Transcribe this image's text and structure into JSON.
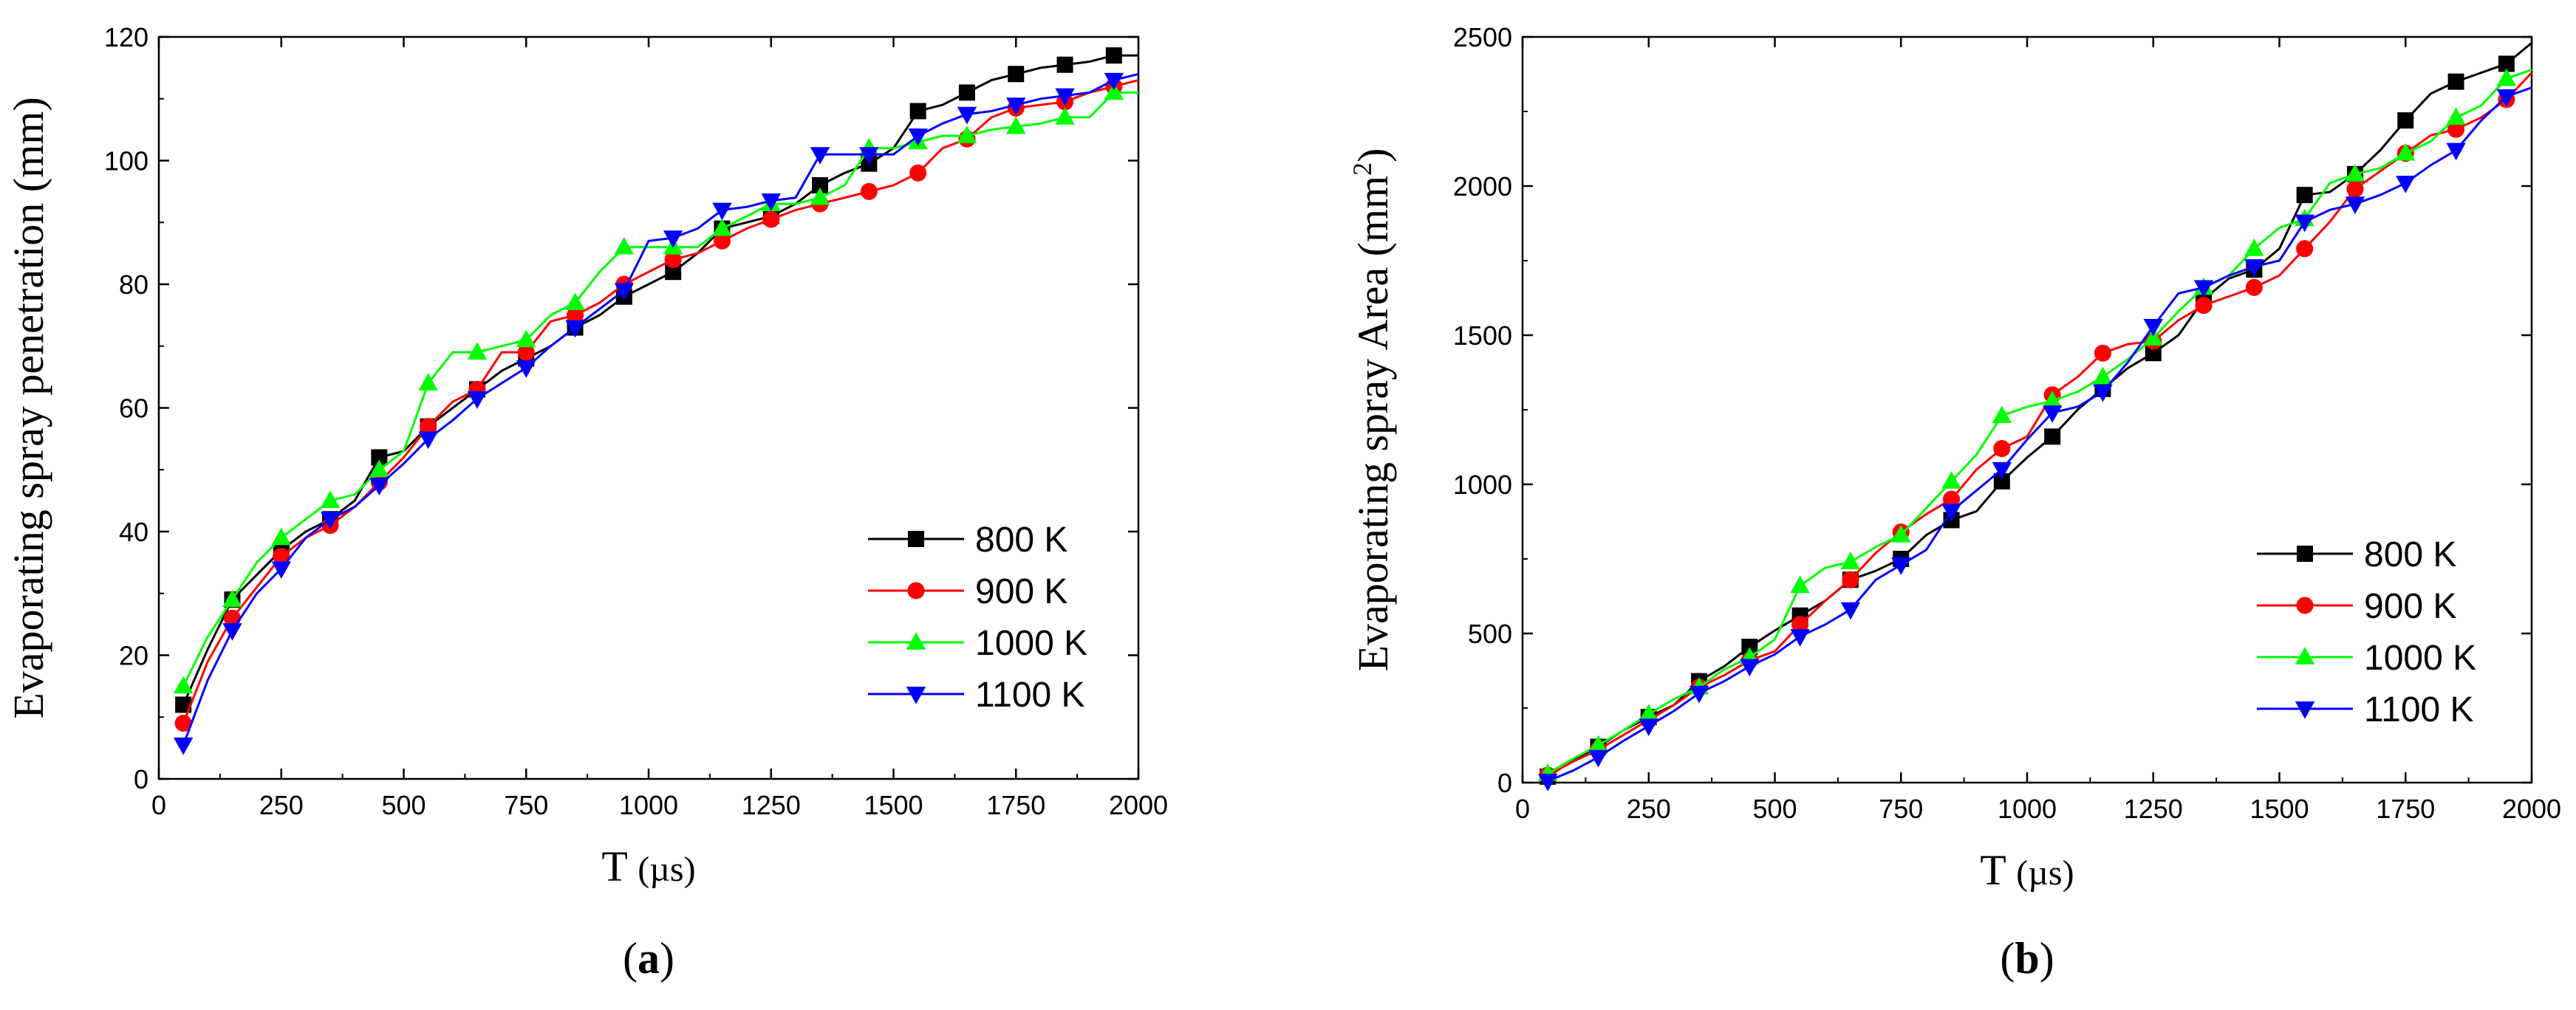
{
  "chart_data": [
    {
      "type": "line",
      "panel_label": "(a)",
      "panel_letter": "a",
      "xlabel": "T",
      "xunit": "(µs)",
      "ylabel": "Evaporating spray penetration (mm)",
      "xlim": [
        0,
        2000
      ],
      "ylim": [
        0,
        120
      ],
      "xticks": [
        0,
        250,
        500,
        750,
        1000,
        1250,
        1500,
        1750,
        2000
      ],
      "yticks": [
        0,
        20,
        40,
        60,
        80,
        100,
        120
      ],
      "legend_position": "bottom-right",
      "series": [
        {
          "name": "800 K",
          "color": "#000000",
          "marker": "square",
          "x": [
            50,
            100,
            150,
            200,
            250,
            300,
            350,
            400,
            450,
            500,
            550,
            600,
            650,
            700,
            750,
            800,
            850,
            900,
            950,
            1000,
            1050,
            1100,
            1150,
            1200,
            1250,
            1300,
            1350,
            1400,
            1450,
            1500,
            1550,
            1600,
            1650,
            1700,
            1750,
            1800,
            1850,
            1900,
            1950,
            2000
          ],
          "y": [
            12,
            21,
            29,
            33,
            37,
            40,
            42,
            45,
            52,
            53,
            57,
            60,
            63,
            66,
            68,
            70,
            73,
            75,
            78,
            80,
            82,
            85,
            89,
            90,
            91,
            93,
            96,
            98,
            99.5,
            102,
            108,
            109,
            111,
            113,
            114,
            115,
            115.5,
            116,
            117,
            117
          ]
        },
        {
          "name": "900 K",
          "color": "#ff0000",
          "marker": "circle",
          "x": [
            50,
            100,
            150,
            200,
            250,
            300,
            350,
            400,
            450,
            500,
            550,
            600,
            650,
            700,
            750,
            800,
            850,
            900,
            950,
            1000,
            1050,
            1100,
            1150,
            1200,
            1250,
            1300,
            1350,
            1400,
            1450,
            1500,
            1550,
            1600,
            1650,
            1700,
            1750,
            1800,
            1850,
            1900,
            1950,
            2000
          ],
          "y": [
            9,
            19,
            26,
            31,
            36,
            39,
            41,
            44,
            48,
            52,
            57,
            61,
            63,
            69,
            69,
            74,
            75,
            77,
            80,
            82,
            84,
            85,
            87,
            89,
            90.5,
            92,
            93,
            94,
            95,
            96,
            98,
            102,
            103.5,
            107,
            108.5,
            109,
            109.5,
            111,
            112,
            113
          ]
        },
        {
          "name": "1000 K",
          "color": "#00ff00",
          "marker": "triangle-up",
          "x": [
            50,
            100,
            150,
            200,
            250,
            300,
            350,
            400,
            450,
            500,
            550,
            600,
            650,
            700,
            750,
            800,
            850,
            900,
            950,
            1000,
            1050,
            1100,
            1150,
            1200,
            1250,
            1300,
            1350,
            1400,
            1450,
            1500,
            1550,
            1600,
            1650,
            1700,
            1750,
            1800,
            1850,
            1900,
            1950,
            2000
          ],
          "y": [
            15,
            23,
            29,
            35,
            39,
            42,
            45,
            46,
            50,
            53,
            64,
            69,
            69,
            70,
            71,
            75,
            77,
            82,
            86,
            86,
            86,
            86,
            89,
            91,
            93,
            93,
            94,
            96,
            102,
            102,
            103,
            104,
            104,
            105,
            105.5,
            106,
            107,
            107,
            111,
            111
          ]
        },
        {
          "name": "1100 K",
          "color": "#0000ff",
          "marker": "triangle-down",
          "x": [
            50,
            100,
            150,
            200,
            250,
            300,
            350,
            400,
            450,
            500,
            550,
            600,
            650,
            700,
            750,
            800,
            850,
            900,
            950,
            1000,
            1050,
            1100,
            1150,
            1200,
            1250,
            1300,
            1350,
            1400,
            1450,
            1500,
            1550,
            1600,
            1650,
            1700,
            1750,
            1800,
            1850,
            1900,
            1950,
            2000
          ],
          "y": [
            5.5,
            16,
            24,
            30,
            34,
            39,
            42,
            44,
            47.5,
            51,
            55,
            58,
            61.5,
            64,
            66.5,
            70,
            73,
            76,
            79,
            87,
            87.5,
            89,
            92,
            92.5,
            93.5,
            94,
            101,
            101,
            101,
            101,
            104,
            106,
            107.5,
            108,
            109,
            110,
            110.5,
            111,
            113,
            114
          ]
        }
      ]
    },
    {
      "type": "line",
      "panel_label": "(b)",
      "panel_letter": "b",
      "xlabel": "T",
      "xunit": "(µs)",
      "ylabel": "Evaporating spray Area (mm",
      "ylabel_sup": "2",
      "ylabel_tail": ")",
      "xlim": [
        0,
        2000
      ],
      "ylim": [
        0,
        2500
      ],
      "xticks": [
        0,
        250,
        500,
        750,
        1000,
        1250,
        1500,
        1750,
        2000
      ],
      "yticks": [
        0,
        500,
        1000,
        1500,
        2000,
        2500
      ],
      "legend_position": "bottom-right",
      "series": [
        {
          "name": "800 K",
          "color": "#000000",
          "marker": "square",
          "x": [
            50,
            100,
            150,
            200,
            250,
            300,
            350,
            400,
            450,
            500,
            550,
            600,
            650,
            700,
            750,
            800,
            850,
            900,
            950,
            1000,
            1050,
            1100,
            1150,
            1200,
            1250,
            1300,
            1350,
            1400,
            1450,
            1500,
            1550,
            1600,
            1650,
            1700,
            1750,
            1800,
            1850,
            1900,
            1950,
            2000
          ],
          "y": [
            20,
            75,
            120,
            175,
            220,
            260,
            340,
            390,
            455,
            510,
            560,
            610,
            680,
            710,
            750,
            830,
            880,
            910,
            1010,
            1090,
            1160,
            1250,
            1320,
            1390,
            1440,
            1500,
            1620,
            1690,
            1720,
            1790,
            1970,
            1980,
            2040,
            2120,
            2220,
            2310,
            2350,
            2380,
            2410,
            2480
          ]
        },
        {
          "name": "900 K",
          "color": "#ff0000",
          "marker": "circle",
          "x": [
            50,
            100,
            150,
            200,
            250,
            300,
            350,
            400,
            450,
            500,
            550,
            600,
            650,
            700,
            750,
            800,
            850,
            900,
            950,
            1000,
            1050,
            1100,
            1150,
            1200,
            1250,
            1300,
            1350,
            1400,
            1450,
            1500,
            1550,
            1600,
            1650,
            1700,
            1750,
            1800,
            1850,
            1900,
            1950,
            2000
          ],
          "y": [
            25,
            70,
            110,
            160,
            210,
            260,
            320,
            360,
            410,
            440,
            530,
            610,
            680,
            770,
            840,
            900,
            950,
            1050,
            1120,
            1160,
            1300,
            1360,
            1440,
            1470,
            1480,
            1550,
            1600,
            1630,
            1660,
            1700,
            1790,
            1880,
            1990,
            2050,
            2110,
            2170,
            2190,
            2230,
            2290,
            2380
          ]
        },
        {
          "name": "1000 K",
          "color": "#00ff00",
          "marker": "triangle-up",
          "x": [
            50,
            100,
            150,
            200,
            250,
            300,
            350,
            400,
            450,
            500,
            550,
            600,
            650,
            700,
            750,
            800,
            850,
            900,
            950,
            1000,
            1050,
            1100,
            1150,
            1200,
            1250,
            1300,
            1350,
            1400,
            1450,
            1500,
            1550,
            1600,
            1650,
            1700,
            1750,
            1800,
            1850,
            1900,
            1950,
            2000
          ],
          "y": [
            30,
            80,
            125,
            175,
            230,
            280,
            320,
            380,
            420,
            480,
            660,
            720,
            740,
            790,
            830,
            920,
            1010,
            1100,
            1230,
            1260,
            1280,
            1310,
            1360,
            1420,
            1490,
            1580,
            1660,
            1700,
            1790,
            1860,
            1890,
            2010,
            2040,
            2060,
            2110,
            2150,
            2230,
            2270,
            2360,
            2390
          ]
        },
        {
          "name": "1100 K",
          "color": "#0000ff",
          "marker": "triangle-down",
          "x": [
            50,
            100,
            150,
            200,
            250,
            300,
            350,
            400,
            450,
            500,
            550,
            600,
            650,
            700,
            750,
            800,
            850,
            900,
            950,
            1000,
            1050,
            1100,
            1150,
            1200,
            1250,
            1300,
            1350,
            1400,
            1450,
            1500,
            1550,
            1600,
            1650,
            1700,
            1750,
            1800,
            1850,
            1900,
            1950,
            2000
          ],
          "y": [
            5,
            40,
            85,
            140,
            190,
            240,
            300,
            340,
            390,
            430,
            490,
            530,
            580,
            680,
            730,
            780,
            910,
            980,
            1050,
            1150,
            1240,
            1260,
            1310,
            1410,
            1530,
            1640,
            1660,
            1700,
            1730,
            1750,
            1880,
            1920,
            1940,
            1970,
            2010,
            2070,
            2120,
            2220,
            2300,
            2330
          ]
        }
      ]
    }
  ]
}
